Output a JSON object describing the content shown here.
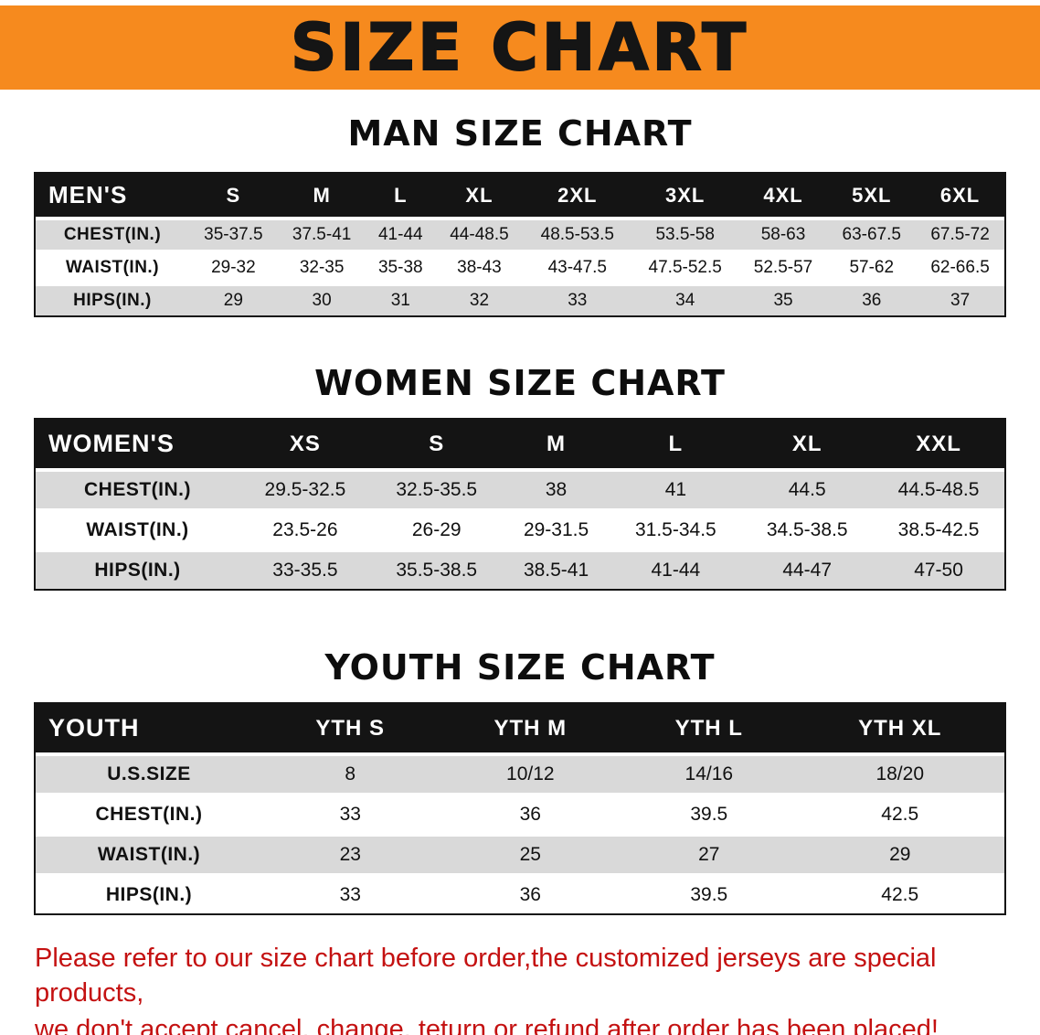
{
  "banner": {
    "title": "SIZE CHART"
  },
  "colors": {
    "banner_bg": "#f68a1e",
    "header_bg": "#141414",
    "row_gray": "#d9d9d9",
    "footer_red": "#c41111"
  },
  "sections": [
    {
      "heading": "MAN SIZE CHART",
      "table": {
        "header": [
          "MEN'S",
          "S",
          "M",
          "L",
          "XL",
          "2XL",
          "3XL",
          "4XL",
          "5XL",
          "6XL"
        ],
        "rows": [
          {
            "label": "CHEST(IN.)",
            "values": [
              "35-37.5",
              "37.5-41",
              "41-44",
              "44-48.5",
              "48.5-53.5",
              "53.5-58",
              "58-63",
              "63-67.5",
              "67.5-72"
            ]
          },
          {
            "label": "WAIST(IN.)",
            "values": [
              "29-32",
              "32-35",
              "35-38",
              "38-43",
              "43-47.5",
              "47.5-52.5",
              "52.5-57",
              "57-62",
              "62-66.5"
            ]
          },
          {
            "label": "HIPS(IN.)",
            "values": [
              "29",
              "30",
              "31",
              "32",
              "33",
              "34",
              "35",
              "36",
              "37"
            ]
          }
        ]
      }
    },
    {
      "heading": "WOMEN SIZE CHART",
      "table": {
        "header": [
          "WOMEN'S",
          "XS",
          "S",
          "M",
          "L",
          "XL",
          "XXL"
        ],
        "rows": [
          {
            "label": "CHEST(IN.)",
            "values": [
              "29.5-32.5",
              "32.5-35.5",
              "38",
              "41",
              "44.5",
              "44.5-48.5"
            ]
          },
          {
            "label": "WAIST(IN.)",
            "values": [
              "23.5-26",
              "26-29",
              "29-31.5",
              "31.5-34.5",
              "34.5-38.5",
              "38.5-42.5"
            ]
          },
          {
            "label": "HIPS(IN.)",
            "values": [
              "33-35.5",
              "35.5-38.5",
              "38.5-41",
              "41-44",
              "44-47",
              "47-50"
            ]
          }
        ]
      }
    },
    {
      "heading": "YOUTH SIZE CHART",
      "table": {
        "header": [
          "YOUTH",
          "YTH S",
          "YTH M",
          "YTH L",
          "YTH XL"
        ],
        "rows": [
          {
            "label": "U.S.SIZE",
            "values": [
              "8",
              "10/12",
              "14/16",
              "18/20"
            ]
          },
          {
            "label": "CHEST(IN.)",
            "values": [
              "33",
              "36",
              "39.5",
              "42.5"
            ]
          },
          {
            "label": "WAIST(IN.)",
            "values": [
              "23",
              "25",
              "27",
              "29"
            ]
          },
          {
            "label": "HIPS(IN.)",
            "values": [
              "33",
              "36",
              "39.5",
              "42.5"
            ]
          }
        ]
      }
    }
  ],
  "footer": {
    "lines": [
      "Please refer to our size chart before order,the customized jerseys are special products,",
      "we don't accept cancel, change, teturn or refund after order has been placed!"
    ]
  }
}
